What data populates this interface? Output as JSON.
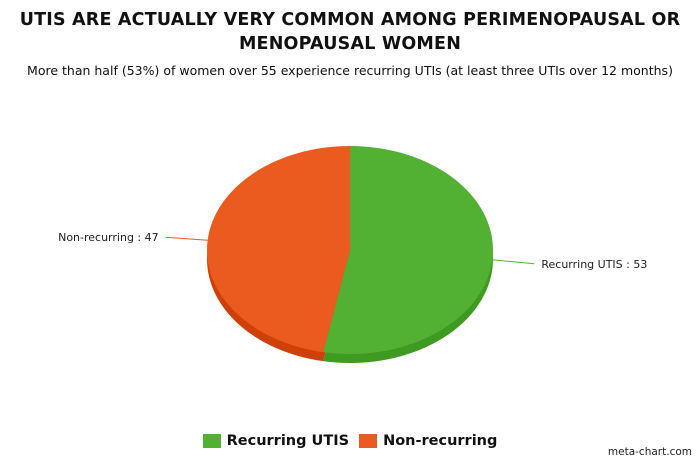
{
  "chart_data": {
    "type": "pie",
    "title": "UTIS ARE ACTUALLY VERY COMMON AMONG PERIMENOPAUSAL OR MENOPAUSAL WOMEN",
    "subtitle": "More than half (53%) of women over 55 experience recurring UTIs (at least three UTIs over 12 months)",
    "slices": [
      {
        "label": "Recurring UTIS",
        "value": 53,
        "color": "#52b132",
        "side_color": "#3e9a20",
        "data_label": "Recurring UTIS : 53"
      },
      {
        "label": "Non-recurring",
        "value": 47,
        "color": "#eb5a1e",
        "side_color": "#cf3f08",
        "data_label": "Non-recurring : 47"
      }
    ],
    "legend_position": "bottom-center",
    "style": "3d-pie"
  },
  "credit": "meta-chart.com"
}
